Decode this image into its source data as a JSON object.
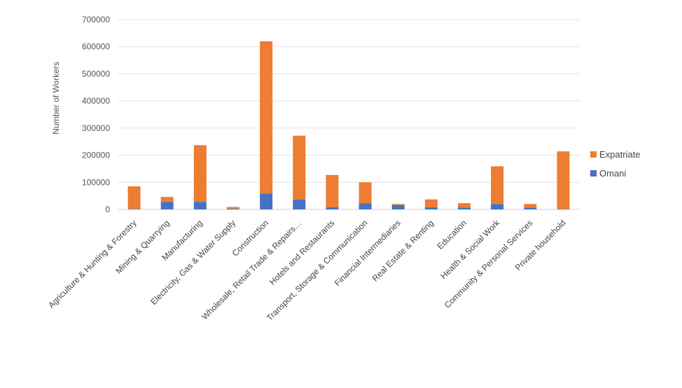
{
  "chart_data": {
    "type": "bar",
    "stacked": true,
    "ylabel": "Number of Workers",
    "xlabel": "",
    "ylim": [
      0,
      700000
    ],
    "yticks": [
      0,
      100000,
      200000,
      300000,
      400000,
      500000,
      600000,
      700000
    ],
    "grid": true,
    "legend_position": "right",
    "categories": [
      "Agriculture & Hunting & Forestry",
      "Mining & Quarrying",
      "Manufacturing",
      "Electricity, Gas & Water Supply",
      "Construction",
      "Wholesale, Retail Trade & Repairs…",
      "Hotels and Restaurants",
      "Transport, Storage & Communication",
      "Financial Intermediaries",
      "Real Estate & Renting",
      "Education",
      "Health & Social Work",
      "Community & Personal Services",
      "Private household"
    ],
    "series": [
      {
        "name": "Omani",
        "color": "#4472C4",
        "values": [
          2000,
          28000,
          28000,
          3000,
          58000,
          37000,
          8000,
          22000,
          16000,
          8000,
          7000,
          20000,
          7000,
          1000
        ]
      },
      {
        "name": "Expatriate",
        "color": "#ED7D31",
        "values": [
          83000,
          18000,
          209000,
          6000,
          562000,
          235000,
          119000,
          78000,
          4000,
          29000,
          16000,
          139000,
          13000,
          213000
        ]
      }
    ],
    "legend_order": [
      "Expatriate",
      "Omani"
    ]
  }
}
